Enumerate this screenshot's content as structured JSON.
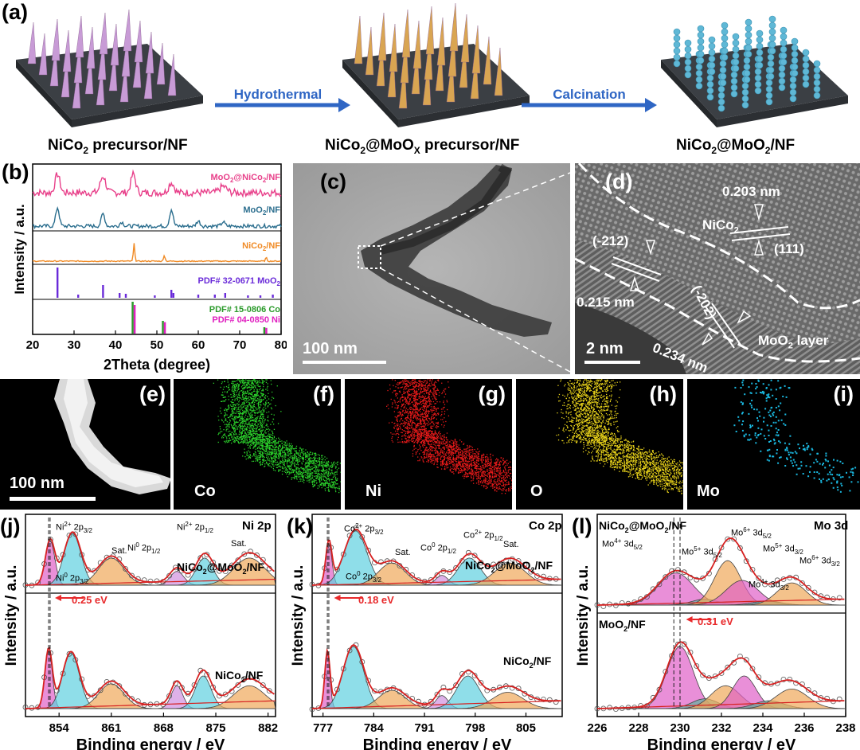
{
  "panel_labels": {
    "a": "(a)",
    "b": "(b)",
    "c": "(c)",
    "d": "(d)",
    "e": "(e)",
    "f": "(f)",
    "g": "(g)",
    "h": "(h)",
    "i": "(i)",
    "j": "(j)",
    "k": "(k)",
    "l": "(l)"
  },
  "scheme": {
    "step1_label": "NiCo",
    "step1_sub": "2",
    "step1_tail": " precursor/NF",
    "step2_label": "NiCo",
    "step2_sub": "2",
    "step2_mid": "@MoO",
    "step2_sub2": "X",
    "step2_tail": " precursor/NF",
    "step3_label": "NiCo",
    "step3_sub": "2",
    "step3_mid": "@MoO",
    "step3_sub2": "2",
    "step3_tail": "/NF",
    "arrow1": "Hydrothermal",
    "arrow2": "Calcination",
    "colors": {
      "substrate": "#3b3f44",
      "spike1": "#c89bd6",
      "spike2": "#d9a552",
      "spike3": "#5fb8d6",
      "arrow": "#2f66c4"
    }
  },
  "xrd": {
    "ylabel": "Intensity / a.u.",
    "xlabel": "2Theta (degree)",
    "ticks": [
      "20",
      "30",
      "40",
      "50",
      "60",
      "70",
      "80"
    ],
    "traces": [
      {
        "name": "MoO",
        "sub": "2",
        "mid": "@NiCo",
        "sub2": "2",
        "tail": "/NF",
        "color": "#e8408a"
      },
      {
        "name": "MoO",
        "sub": "2",
        "tail": "/NF",
        "color": "#2b6e8e"
      },
      {
        "name": "NiCo",
        "sub": "2",
        "tail": "/NF",
        "color": "#f08a24"
      }
    ],
    "pdf1": {
      "text": "PDF# 32-0671 MoO",
      "sub": "2",
      "color": "#6a2bd9"
    },
    "pdf2": {
      "text": "PDF# 15-0806 Co",
      "color": "#2a9a2a"
    },
    "pdf3": {
      "text": "PDF# 04-0850 Ni",
      "color": "#e020c0"
    }
  },
  "tem": {
    "scale": "100 nm"
  },
  "hrtem": {
    "scale": "2 nm",
    "d1": "0.203 nm",
    "phase1": "NiCo",
    "phase1_sub": "2",
    "plane1": "(111)",
    "plane2": "(-212)",
    "d2": "0.215 nm",
    "plane3": "(-202)",
    "d3": "0.234 nm",
    "layer": "MoO",
    "layer_sub": "2",
    "layer_tail": " layer"
  },
  "eds": {
    "scale": "100 nm",
    "maps": [
      {
        "el": "Co",
        "color": "#2bd12b"
      },
      {
        "el": "Ni",
        "color": "#e81a1a"
      },
      {
        "el": "O",
        "color": "#e8d21a"
      },
      {
        "el": "Mo",
        "color": "#1ab8e0"
      }
    ]
  },
  "xps": {
    "ylabel": "Intensity / a.u.",
    "xlabel": "Binding energy / eV",
    "ni": {
      "title": "Ni 2p",
      "top": "NiCo",
      "top_sub": "2",
      "top_tail": "@MoO",
      "top_sub2": "2",
      "top_end": "/NF",
      "bottom": "NiCo",
      "bottom_sub": "2",
      "bottom_tail": "/NF",
      "shift": "0.25 eV",
      "ticks": [
        "854",
        "861",
        "868",
        "875",
        "882"
      ]
    },
    "co": {
      "title": "Co 2p",
      "shift": "0.18 eV",
      "ticks": [
        "777",
        "784",
        "791",
        "798",
        "805"
      ]
    },
    "mo": {
      "title": "Mo 3d",
      "top": "NiCo",
      "top_sub": "2",
      "top_tail": "@MoO",
      "top_sub2": "2",
      "top_end": "/NF",
      "bottom": "MoO",
      "bottom_sub": "2",
      "bottom_tail": "/NF",
      "shift": "0.31 eV",
      "ticks": [
        "226",
        "228",
        "230",
        "232",
        "234",
        "236",
        "238"
      ]
    },
    "labels": {
      "ni2p32": "Ni",
      "ni2p12": "Ni",
      "ni0a": "Ni",
      "ni0b": "Ni",
      "sat": "Sat.",
      "co2p32": "Co",
      "co2p12": "Co",
      "co0a": "Co",
      "co0b": "Co"
    }
  }
}
